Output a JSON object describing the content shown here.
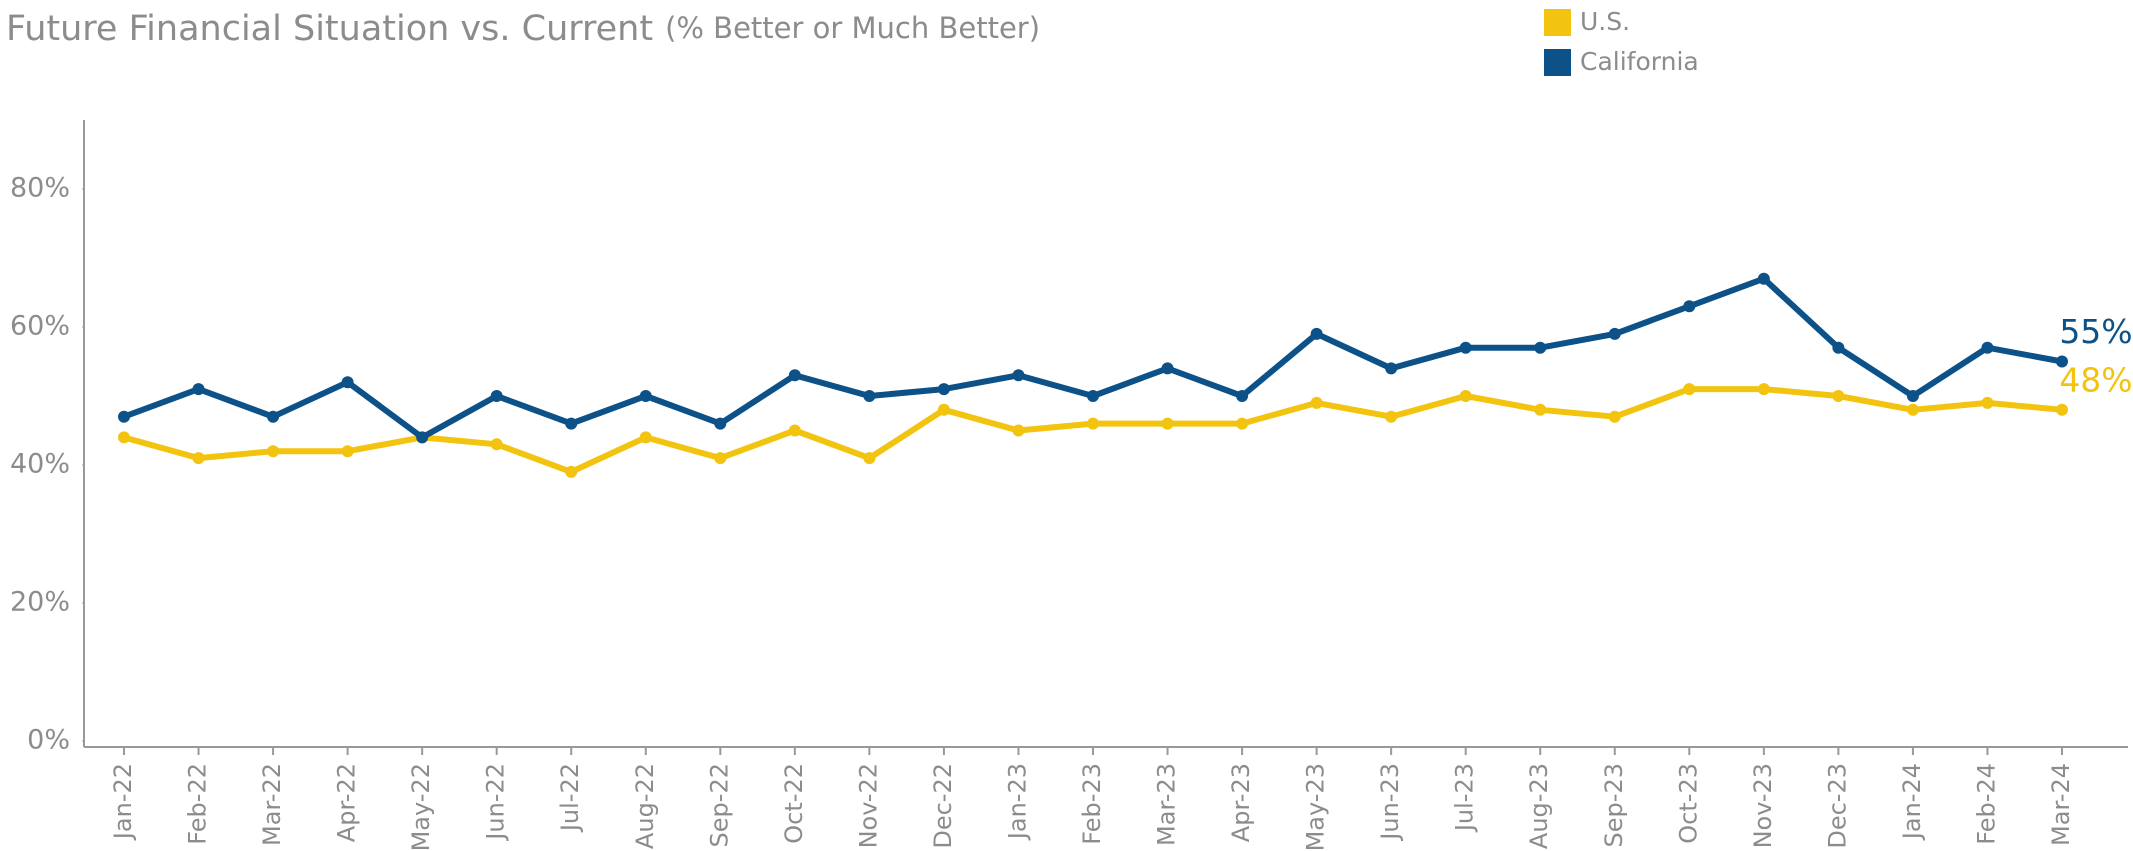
{
  "chart_data": {
    "type": "line",
    "title": "Future Financial Situation vs. Current",
    "subtitle": "(% Better or Much Better)",
    "categories": [
      "Jan-22",
      "Feb-22",
      "Mar-22",
      "Apr-22",
      "May-22",
      "Jun-22",
      "Jul-22",
      "Aug-22",
      "Sep-22",
      "Oct-22",
      "Nov-22",
      "Dec-22",
      "Jan-23",
      "Feb-23",
      "Mar-23",
      "Apr-23",
      "May-23",
      "Jun-23",
      "Jul-23",
      "Aug-23",
      "Sep-23",
      "Oct-23",
      "Nov-23",
      "Dec-23",
      "Jan-24",
      "Feb-24",
      "Mar-24"
    ],
    "series": [
      {
        "name": "U.S.",
        "color": "#f2c40f",
        "values": [
          44,
          41,
          42,
          42,
          44,
          43,
          39,
          44,
          41,
          45,
          41,
          48,
          45,
          46,
          46,
          46,
          49,
          47,
          50,
          48,
          47,
          51,
          51,
          50,
          48,
          49,
          48
        ],
        "value_labels": [
          null,
          null,
          null,
          null,
          null,
          null,
          null,
          null,
          null,
          null,
          null,
          null,
          null,
          null,
          null,
          null,
          null,
          null,
          null,
          null,
          null,
          null,
          null,
          null,
          null,
          null,
          "48%"
        ]
      },
      {
        "name": "California",
        "color": "#0d5189",
        "values": [
          47,
          51,
          47,
          52,
          44,
          50,
          46,
          50,
          46,
          53,
          50,
          51,
          53,
          50,
          54,
          50,
          59,
          54,
          57,
          57,
          59,
          63,
          67,
          57,
          50,
          57,
          55
        ],
        "value_labels": [
          null,
          null,
          null,
          null,
          null,
          null,
          null,
          null,
          null,
          null,
          null,
          null,
          null,
          null,
          null,
          null,
          null,
          null,
          null,
          null,
          null,
          null,
          null,
          null,
          null,
          null,
          "55%"
        ]
      }
    ],
    "ylim": [
      0,
      90
    ],
    "yticks": [
      {
        "value": 0,
        "label": "0%"
      },
      {
        "value": 20,
        "label": "20%"
      },
      {
        "value": 40,
        "label": "40%"
      },
      {
        "value": 60,
        "label": "60%"
      },
      {
        "value": 80,
        "label": "80%"
      }
    ],
    "legend": "top-right"
  }
}
